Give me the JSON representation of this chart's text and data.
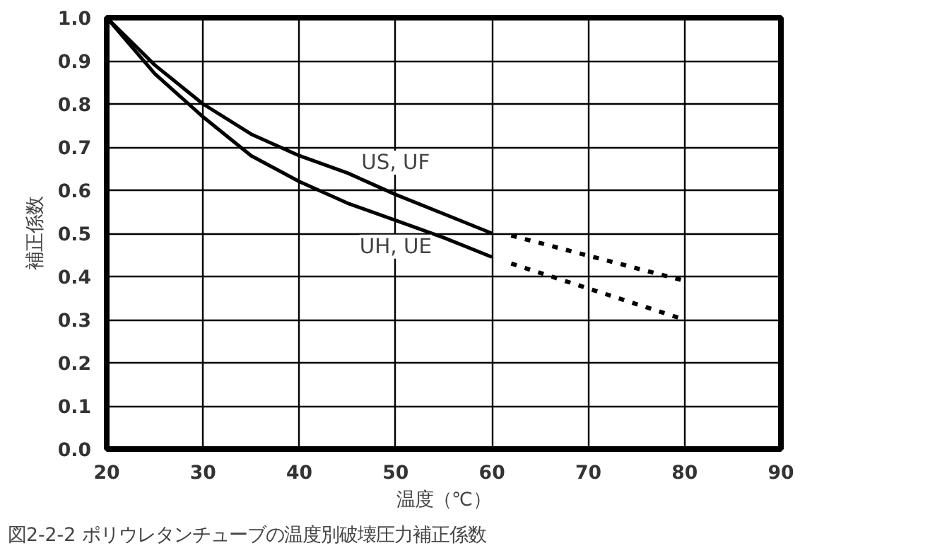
{
  "chart_data": {
    "type": "line",
    "xlabel": "温度（℃）",
    "ylabel": "補正係数",
    "xlim": [
      20,
      90
    ],
    "xticks": [
      20,
      30,
      40,
      50,
      60,
      70,
      80,
      90
    ],
    "ylim": [
      0,
      1.0
    ],
    "yticks": [
      {
        "value": 0,
        "label": "0.0"
      },
      {
        "value": 0.1,
        "label": "0.1"
      },
      {
        "value": 0.2,
        "label": "0.2"
      },
      {
        "value": 0.3,
        "label": "0.3"
      },
      {
        "value": 0.4,
        "label": "0.4"
      },
      {
        "value": 0.5,
        "label": "0.5"
      },
      {
        "value": 0.6,
        "label": "0.6"
      },
      {
        "value": 0.7,
        "label": "0.7"
      },
      {
        "value": 0.8,
        "label": "0.8"
      },
      {
        "value": 0.9,
        "label": "0.9"
      },
      {
        "value": 1.0,
        "label": "1.0"
      }
    ],
    "grid": true,
    "series": [
      {
        "name": "US, UF",
        "color": "#000000",
        "line_style": "solid",
        "x": [
          20,
          25,
          30,
          35,
          40,
          45,
          50,
          55,
          60
        ],
        "values": [
          1.0,
          0.89,
          0.8,
          0.73,
          0.68,
          0.64,
          0.59,
          0.545,
          0.5
        ]
      },
      {
        "name": "UH, UE",
        "color": "#000000",
        "line_style": "solid",
        "x": [
          20,
          25,
          30,
          35,
          40,
          45,
          50,
          55,
          60
        ],
        "values": [
          1.0,
          0.87,
          0.77,
          0.68,
          0.62,
          0.57,
          0.53,
          0.49,
          0.445
        ]
      },
      {
        "color": "#000000",
        "line_style": "dashed",
        "x": [
          62,
          80
        ],
        "values": [
          0.495,
          0.39
        ]
      },
      {
        "color": "#000000",
        "line_style": "dashed",
        "x": [
          62,
          80
        ],
        "values": [
          0.43,
          0.3
        ]
      }
    ],
    "annotations": [
      "図2-2-2 ポリウレタンチューブの温度別破壊圧力補正係数"
    ]
  }
}
